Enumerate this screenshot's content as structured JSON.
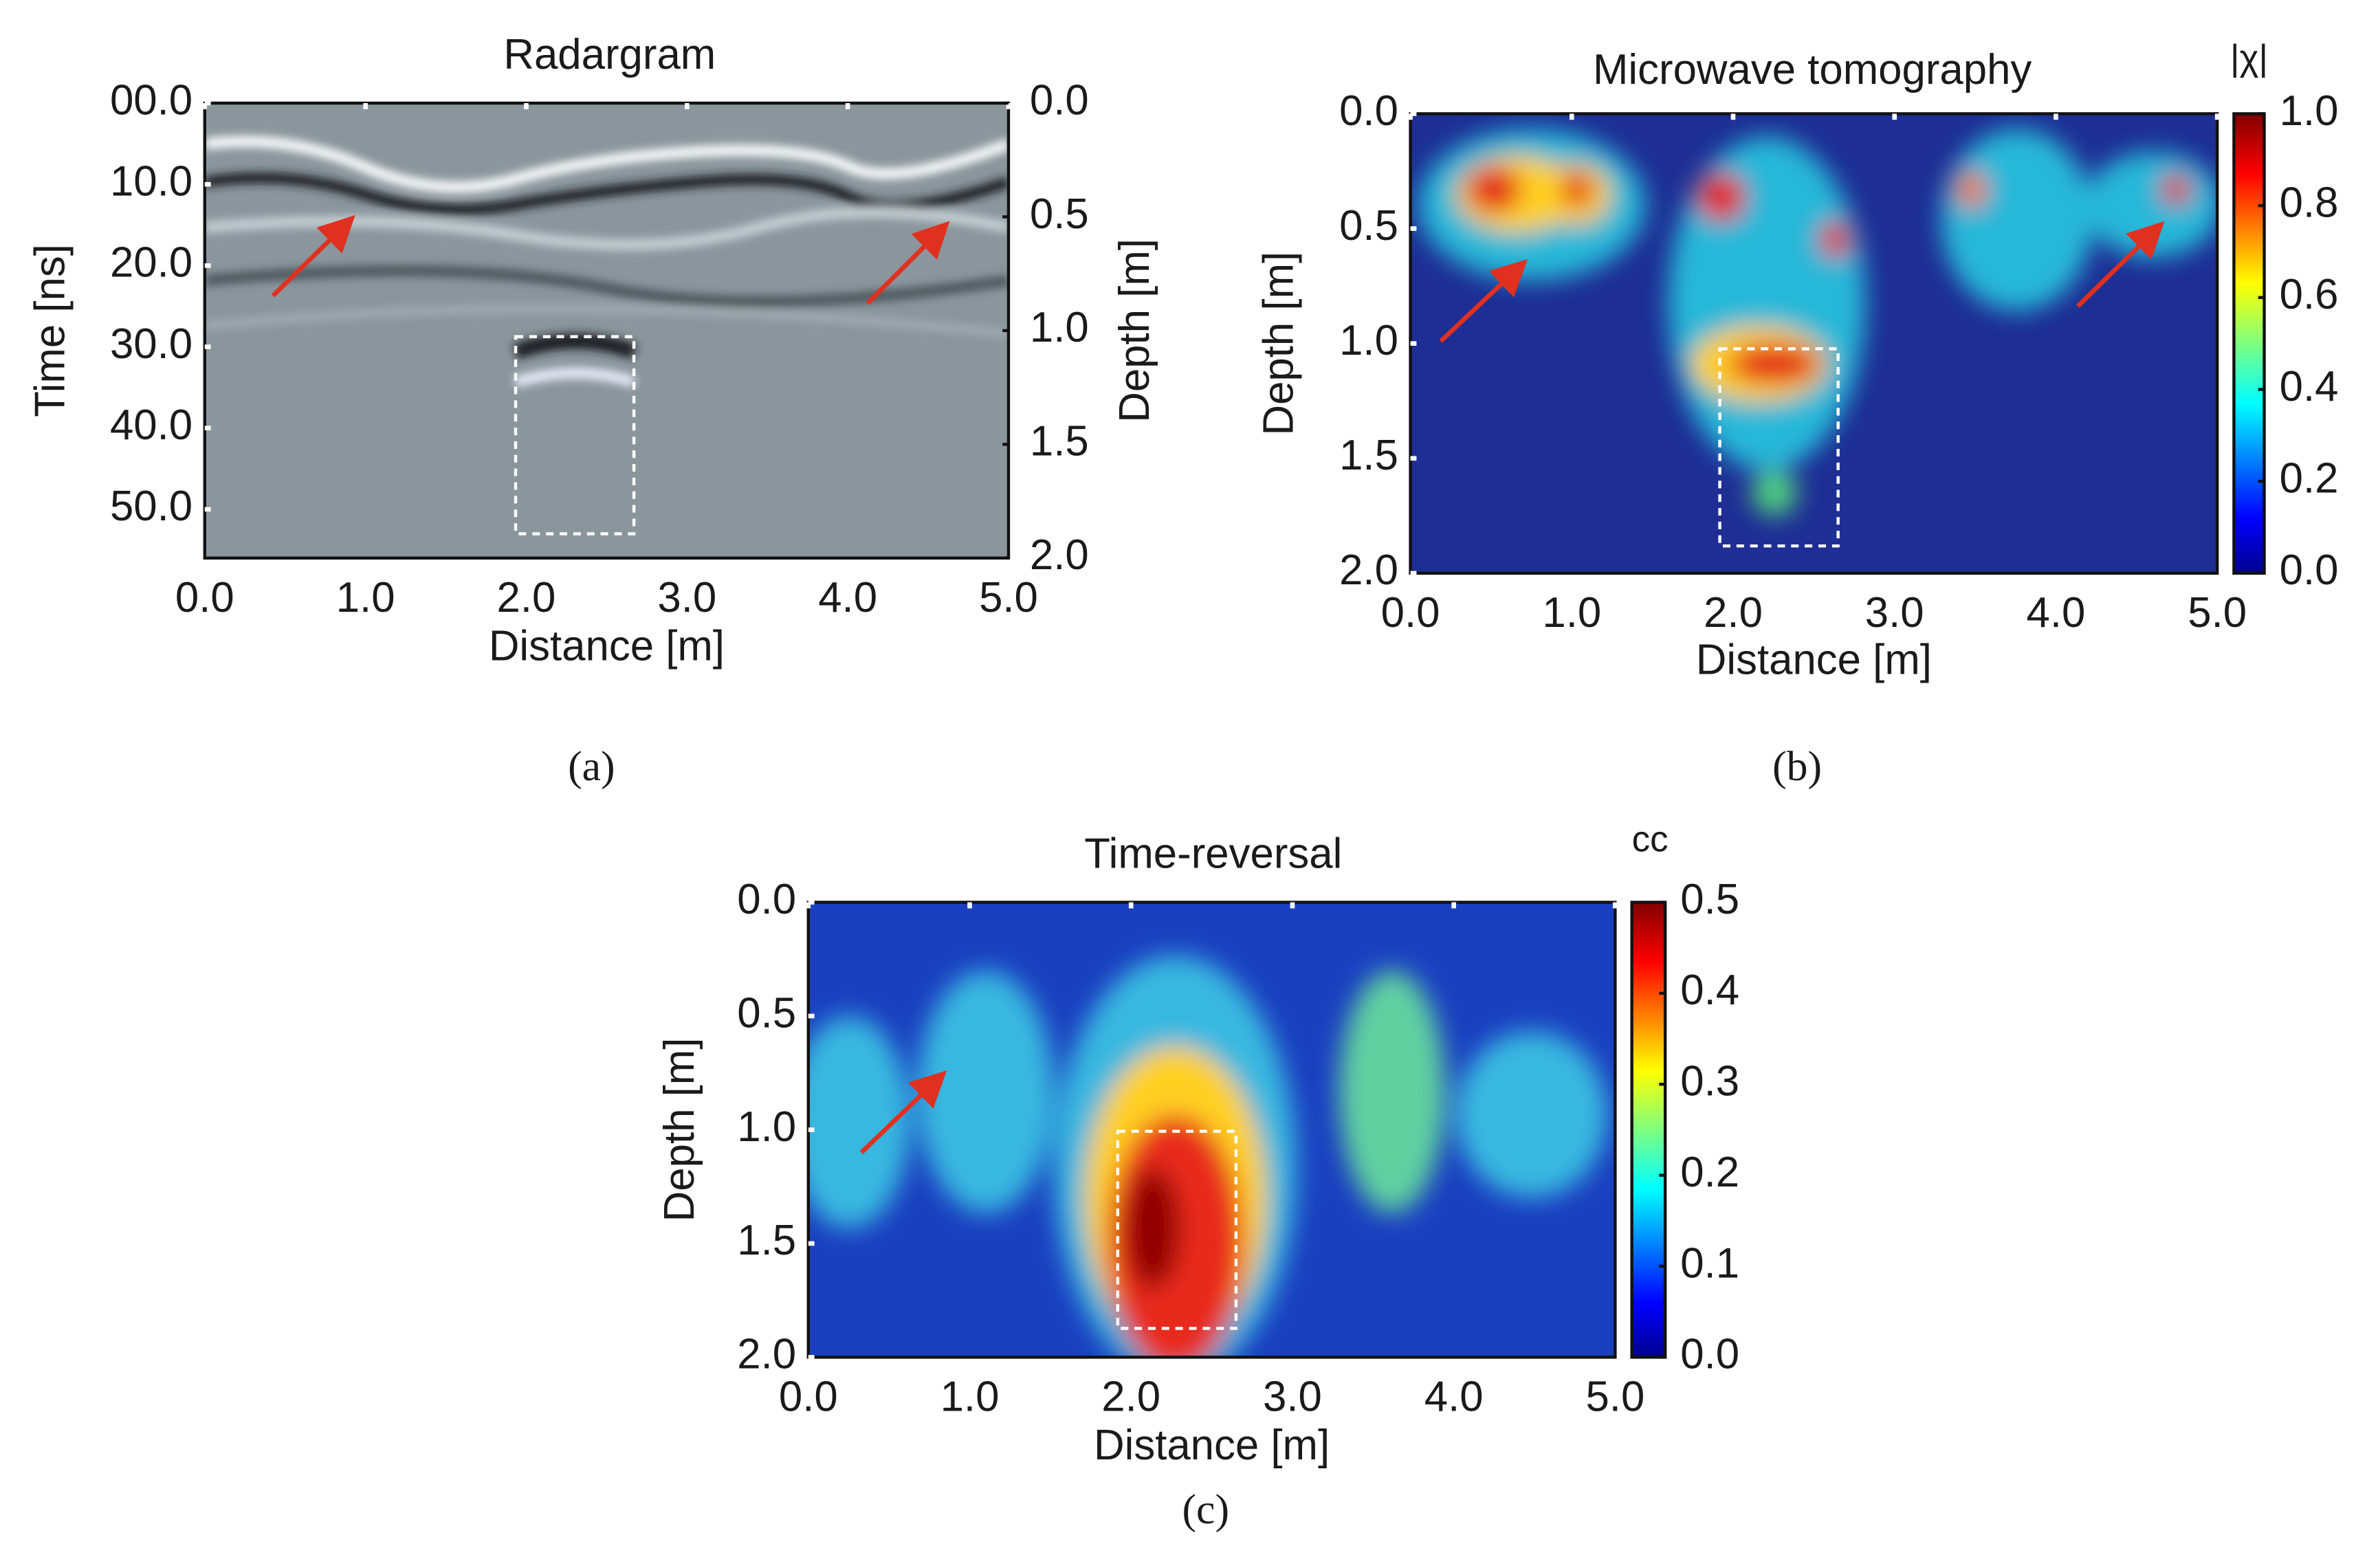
{
  "chart_data": [
    {
      "type": "heatmap",
      "panel_label": "(a)",
      "title": "Radargram",
      "x_label": "Distance [m]",
      "y_label": "Time [ns]",
      "y2_label": "Depth [m]",
      "xlim": [
        0,
        5
      ],
      "xticks": [
        {
          "value": 0,
          "label": "0.0"
        },
        {
          "value": 1,
          "label": "1.0"
        },
        {
          "value": 2,
          "label": "2.0"
        },
        {
          "value": 3,
          "label": "3.0"
        },
        {
          "value": 4,
          "label": "4.0"
        },
        {
          "value": 5,
          "label": "5.0"
        }
      ],
      "ylim": [
        0,
        56
      ],
      "y_inverted": true,
      "yticks": [
        {
          "value": 0,
          "label": "00.0"
        },
        {
          "value": 10,
          "label": "10.0"
        },
        {
          "value": 20,
          "label": "20.0"
        },
        {
          "value": 30,
          "label": "30.0"
        },
        {
          "value": 40,
          "label": "40.0"
        },
        {
          "value": 50,
          "label": "50.0"
        }
      ],
      "y2lim": [
        0,
        2
      ],
      "y2ticks": [
        {
          "value": 0,
          "label": "0.0"
        },
        {
          "value": 0.5,
          "label": "0.5"
        },
        {
          "value": 1,
          "label": "1.0"
        },
        {
          "value": 1.5,
          "label": "1.5"
        },
        {
          "value": 2,
          "label": "2.0"
        }
      ]
    },
    {
      "type": "heatmap",
      "panel_label": "(b)",
      "title": "Microwave tomography",
      "x_label": "Distance [m]",
      "y_label": "Depth [m]",
      "xlim": [
        0,
        5
      ],
      "xticks": [
        {
          "value": 0,
          "label": "0.0"
        },
        {
          "value": 1,
          "label": "1.0"
        },
        {
          "value": 2,
          "label": "2.0"
        },
        {
          "value": 3,
          "label": "3.0"
        },
        {
          "value": 4,
          "label": "4.0"
        },
        {
          "value": 5,
          "label": "5.0"
        }
      ],
      "ylim": [
        0,
        2
      ],
      "y_inverted": true,
      "yticks": [
        {
          "value": 0,
          "label": "0.0"
        },
        {
          "value": 0.5,
          "label": "0.5"
        },
        {
          "value": 1,
          "label": "1.0"
        },
        {
          "value": 1.5,
          "label": "1.5"
        },
        {
          "value": 2,
          "label": "2.0"
        }
      ],
      "colorbar": {
        "label": "|χ|",
        "colormap": "jet",
        "lim": [
          0,
          1
        ],
        "ticks": [
          {
            "value": 0,
            "label": "0.0"
          },
          {
            "value": 0.2,
            "label": "0.2"
          },
          {
            "value": 0.4,
            "label": "0.4"
          },
          {
            "value": 0.6,
            "label": "0.6"
          },
          {
            "value": 0.8,
            "label": "0.8"
          },
          {
            "value": 1,
            "label": "1.0"
          }
        ]
      }
    },
    {
      "type": "heatmap",
      "panel_label": "(c)",
      "title": "Time-reversal",
      "x_label": "Distance [m]",
      "y_label": "Depth [m]",
      "xlim": [
        0,
        5
      ],
      "xticks": [
        {
          "value": 0,
          "label": "0.0"
        },
        {
          "value": 1,
          "label": "1.0"
        },
        {
          "value": 2,
          "label": "2.0"
        },
        {
          "value": 3,
          "label": "3.0"
        },
        {
          "value": 4,
          "label": "4.0"
        },
        {
          "value": 5,
          "label": "5.0"
        }
      ],
      "ylim": [
        0,
        2
      ],
      "y_inverted": true,
      "yticks": [
        {
          "value": 0,
          "label": "0.0"
        },
        {
          "value": 0.5,
          "label": "0.5"
        },
        {
          "value": 1,
          "label": "1.0"
        },
        {
          "value": 1.5,
          "label": "1.5"
        },
        {
          "value": 2,
          "label": "2.0"
        }
      ],
      "colorbar": {
        "label": "cc",
        "colormap": "jet",
        "lim": [
          0,
          0.5
        ],
        "ticks": [
          {
            "value": 0,
            "label": "0.0"
          },
          {
            "value": 0.1,
            "label": "0.1"
          },
          {
            "value": 0.2,
            "label": "0.2"
          },
          {
            "value": 0.3,
            "label": "0.3"
          },
          {
            "value": 0.4,
            "label": "0.4"
          },
          {
            "value": 0.5,
            "label": "0.5"
          }
        ]
      }
    }
  ]
}
